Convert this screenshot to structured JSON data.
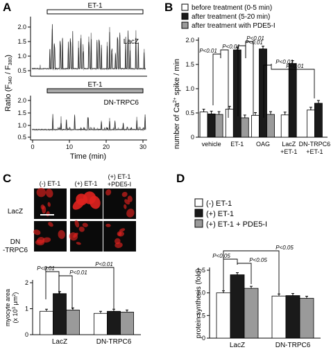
{
  "panels": {
    "A": "A",
    "B": "B",
    "C": "C",
    "D": "D"
  },
  "panel_a": {
    "bar_label": "ET-1",
    "top_trace_label": "LacZ",
    "bottom_trace_label": "DN-TRPC6",
    "ylabel_prefix": "Ratio (F",
    "ylabel_sub1": "340",
    "ylabel_mid": " / F",
    "ylabel_sub2": "380",
    "ylabel_suffix": ")",
    "xlabel": "Time (min)",
    "top_yticks": [
      "2.0",
      "1.5",
      "1.0",
      "0.5"
    ],
    "bottom_yticks": [
      "2.0",
      "1.5",
      "1.0",
      "0.5"
    ],
    "xticks": [
      "0",
      "10",
      "20",
      "30"
    ]
  },
  "panel_b": {
    "legend": [
      "before treatment (0-5 min)",
      "after treatment (5-20 min)",
      "after treatment with PDE5-I"
    ],
    "ylabel_prefix": "number of Ca",
    "ylabel_sup": "2+",
    "ylabel_suffix": " spike / min",
    "yticks": [
      "2.0",
      "1.5",
      "1.0",
      "0.5",
      "0"
    ],
    "categories": [
      "vehicle",
      "ET-1",
      "OAG",
      "LacZ",
      "DN-TRPC6"
    ],
    "category_sub": [
      "",
      "",
      "",
      "+ET-1",
      "+ET-1"
    ],
    "annotations": [
      "P<0.01",
      "P<0.01",
      "P<0.01",
      "P<0.01",
      "P<0.01",
      "P<0.01",
      "P<0.01"
    ]
  },
  "panel_c": {
    "col_headers": [
      "(-) ET-1",
      "(+) ET-1",
      "(+) ET-1",
      "+PDE5-I"
    ],
    "row_labels": [
      "LacZ",
      "DN",
      "-TRPC6"
    ],
    "ylabel1": "myocyte area",
    "ylabel2_prefix": "(x 10",
    "ylabel2_sup": "3",
    "ylabel2_mid": " μm",
    "ylabel2_sup2": "2",
    "ylabel2_suffix": ")",
    "yticks": [
      "2",
      "1",
      "0"
    ],
    "groups": [
      "LacZ",
      "DN-TRPC6"
    ],
    "annotations": [
      "P<0.01",
      "P<0.01",
      "P<0.01"
    ]
  },
  "panel_d": {
    "legend": [
      "(-) ET-1",
      "(+) ET-1",
      "(+) ET-1 + PDE5-I"
    ],
    "ylabel": "protein synthesis (fold)",
    "yticks": [
      "1.5",
      "1.0",
      "0.5",
      "0"
    ],
    "groups": [
      "LacZ",
      "DN-TRPC6"
    ],
    "annotations": [
      "P<0.05",
      "P<0.05",
      "P<0.05"
    ]
  },
  "colors": {
    "white": "#ffffff",
    "black": "#1a1a1a",
    "gray": "#9a9a9a",
    "fluor": "#e0221f"
  },
  "chart_data": [
    {
      "type": "bar",
      "panel": "B",
      "categories": [
        "vehicle",
        "ET-1",
        "OAG",
        "LacZ +ET-1",
        "DN-TRPC6 +ET-1"
      ],
      "ylim": [
        0,
        2.0
      ],
      "series": [
        {
          "name": "before treatment (0-5 min)",
          "values": [
            0.52,
            0.58,
            0.45,
            0.46,
            0.56
          ]
        },
        {
          "name": "after treatment (5-20 min)",
          "values": [
            0.48,
            1.8,
            1.82,
            1.52,
            0.7
          ]
        },
        {
          "name": "after treatment with PDE5-I",
          "values": [
            0.47,
            0.4,
            0.47,
            null,
            null
          ]
        }
      ]
    },
    {
      "type": "bar",
      "panel": "C",
      "categories": [
        "LacZ",
        "DN-TRPC6"
      ],
      "ylim": [
        0,
        2
      ],
      "series": [
        {
          "name": "(-) ET-1",
          "values": [
            0.9,
            0.82
          ]
        },
        {
          "name": "(+) ET-1",
          "values": [
            1.58,
            0.9
          ]
        },
        {
          "name": "(+) ET-1 +PDE5-I",
          "values": [
            0.95,
            0.87
          ]
        }
      ]
    },
    {
      "type": "bar",
      "panel": "D",
      "categories": [
        "LacZ",
        "DN-TRPC6"
      ],
      "ylim": [
        0,
        1.5
      ],
      "series": [
        {
          "name": "(-) ET-1",
          "values": [
            1.0,
            0.93
          ]
        },
        {
          "name": "(+) ET-1",
          "values": [
            1.4,
            0.94
          ]
        },
        {
          "name": "(+) ET-1 + PDE5-I",
          "values": [
            1.1,
            0.88
          ]
        }
      ]
    }
  ]
}
